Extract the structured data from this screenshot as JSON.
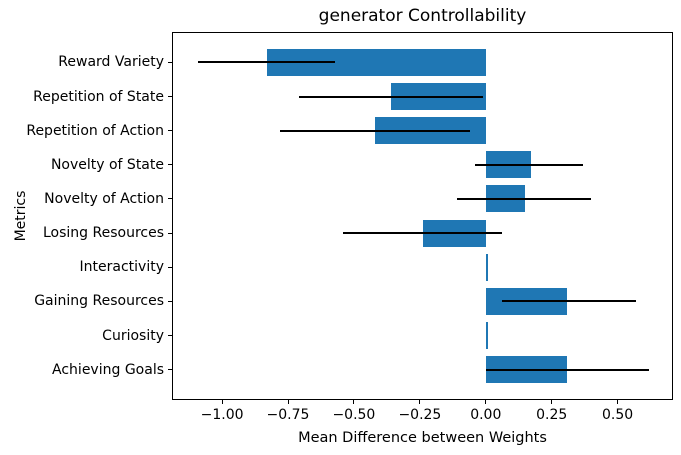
{
  "chart_data": {
    "type": "bar",
    "orientation": "horizontal",
    "title": "generator Controllability",
    "xlabel": "Mean Difference between Weights",
    "ylabel": "Metrics",
    "categories": [
      "Reward Variety",
      "Repetition of State",
      "Repetition of Action",
      "Novelty of State",
      "Novelty of Action",
      "Losing Resources",
      "Interactivity",
      "Gaining Resources",
      "Curiosity",
      "Achieving Goals"
    ],
    "values": [
      -0.83,
      -0.36,
      -0.42,
      0.17,
      0.15,
      -0.24,
      0.01,
      0.31,
      0.01,
      0.31
    ],
    "error_low": [
      -1.09,
      -0.71,
      -0.78,
      -0.04,
      -0.11,
      -0.54,
      null,
      0.06,
      null,
      0.0
    ],
    "error_high": [
      -0.57,
      -0.01,
      -0.06,
      0.37,
      0.4,
      0.06,
      null,
      0.57,
      null,
      0.62
    ],
    "xlim": [
      -1.19,
      0.71
    ],
    "xticks": [
      -1.0,
      -0.75,
      -0.5,
      -0.25,
      0.0,
      0.25,
      0.5
    ],
    "xtick_labels": [
      "−1.00",
      "−0.75",
      "−0.50",
      "−0.25",
      "0.00",
      "0.25",
      "0.50"
    ],
    "bar_color": "#1f77b4",
    "error_color": "#000000",
    "axis_color": "#000000",
    "background_color": "#ffffff",
    "grid": false,
    "legend": "none"
  }
}
